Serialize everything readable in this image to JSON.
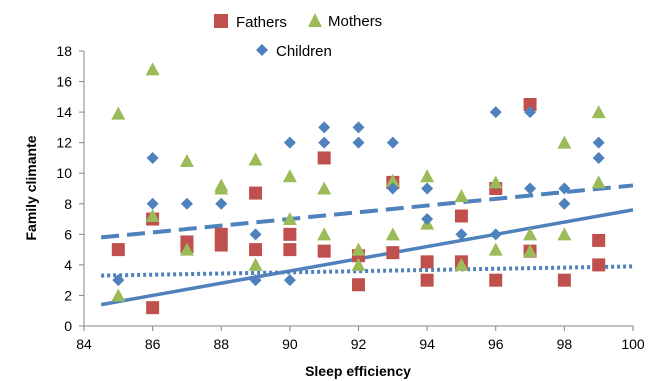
{
  "chart_data": {
    "type": "scatter",
    "title": "",
    "xlabel": "Sleep efficiency",
    "ylabel": "Family climante",
    "xlim": [
      84,
      100
    ],
    "ylim": [
      0,
      18
    ],
    "xticks": [
      "84",
      "86",
      "88",
      "90",
      "92",
      "94",
      "96",
      "98",
      "100"
    ],
    "yticks": [
      "0",
      "2",
      "4",
      "6",
      "8",
      "10",
      "12",
      "14",
      "16",
      "18"
    ],
    "grid": false,
    "legend_position": "top",
    "series": [
      {
        "name": "Fathers",
        "marker": "square",
        "color": "#C0504D",
        "points": [
          [
            85,
            5.0
          ],
          [
            86,
            1.2
          ],
          [
            86,
            7.0
          ],
          [
            87,
            5.5
          ],
          [
            87,
            5.2
          ],
          [
            88,
            6.0
          ],
          [
            88,
            5.3
          ],
          [
            89,
            8.7
          ],
          [
            89,
            5.0
          ],
          [
            90,
            6.0
          ],
          [
            90,
            5.0
          ],
          [
            91,
            11.0
          ],
          [
            91,
            4.9
          ],
          [
            92,
            4.6
          ],
          [
            92,
            2.7
          ],
          [
            93,
            9.4
          ],
          [
            93,
            4.8
          ],
          [
            94,
            4.2
          ],
          [
            94,
            3.0
          ],
          [
            95,
            7.2
          ],
          [
            95,
            4.2
          ],
          [
            96,
            9.0
          ],
          [
            96,
            3.0
          ],
          [
            97,
            14.5
          ],
          [
            97,
            4.9
          ],
          [
            98,
            3.0
          ],
          [
            99,
            5.6
          ],
          [
            99,
            4.0
          ]
        ]
      },
      {
        "name": "Mothers",
        "marker": "triangle",
        "color": "#9BBB59",
        "points": [
          [
            85,
            13.9
          ],
          [
            85,
            2.0
          ],
          [
            86,
            16.8
          ],
          [
            86,
            7.2
          ],
          [
            87,
            10.8
          ],
          [
            87,
            5.0
          ],
          [
            88,
            9.2
          ],
          [
            88,
            9.0
          ],
          [
            89,
            10.9
          ],
          [
            89,
            4.0
          ],
          [
            90,
            9.8
          ],
          [
            90,
            7.0
          ],
          [
            91,
            9.0
          ],
          [
            91,
            6.0
          ],
          [
            92,
            5.0
          ],
          [
            92,
            4.0
          ],
          [
            93,
            9.5
          ],
          [
            93,
            6.0
          ],
          [
            94,
            9.8
          ],
          [
            94,
            6.7
          ],
          [
            95,
            8.5
          ],
          [
            95,
            4.0
          ],
          [
            96,
            9.4
          ],
          [
            96,
            5.0
          ],
          [
            97,
            6.0
          ],
          [
            97,
            4.9
          ],
          [
            98,
            12.0
          ],
          [
            98,
            6.0
          ],
          [
            99,
            14.0
          ],
          [
            99,
            9.4
          ]
        ]
      },
      {
        "name": "Children",
        "marker": "diamond",
        "color": "#4F81BD",
        "points": [
          [
            85,
            3.0
          ],
          [
            86,
            11.0
          ],
          [
            86,
            8.0
          ],
          [
            87,
            8.0
          ],
          [
            88,
            8.0
          ],
          [
            89,
            6.0
          ],
          [
            89,
            3.0
          ],
          [
            90,
            12.0
          ],
          [
            90,
            3.0
          ],
          [
            91,
            13.0
          ],
          [
            91,
            12.0
          ],
          [
            92,
            13.0
          ],
          [
            92,
            12.0
          ],
          [
            93,
            12.0
          ],
          [
            93,
            9.0
          ],
          [
            94,
            9.0
          ],
          [
            94,
            7.0
          ],
          [
            95,
            6.0
          ],
          [
            96,
            14.0
          ],
          [
            96,
            6.0
          ],
          [
            97,
            14.0
          ],
          [
            97,
            9.0
          ],
          [
            98,
            9.0
          ],
          [
            98,
            8.0
          ],
          [
            99,
            12.0
          ],
          [
            99,
            11.0
          ]
        ]
      }
    ],
    "trendlines": [
      {
        "style": "solid",
        "color": "#4F81BD",
        "points": [
          [
            84.5,
            1.4
          ],
          [
            100,
            7.6
          ]
        ]
      },
      {
        "style": "dashed",
        "color": "#4F81BD",
        "points": [
          [
            84.5,
            5.8
          ],
          [
            100,
            9.2
          ]
        ]
      },
      {
        "style": "dotted",
        "color": "#4F81BD",
        "points": [
          [
            84.5,
            3.3
          ],
          [
            100,
            3.9
          ]
        ]
      }
    ]
  }
}
